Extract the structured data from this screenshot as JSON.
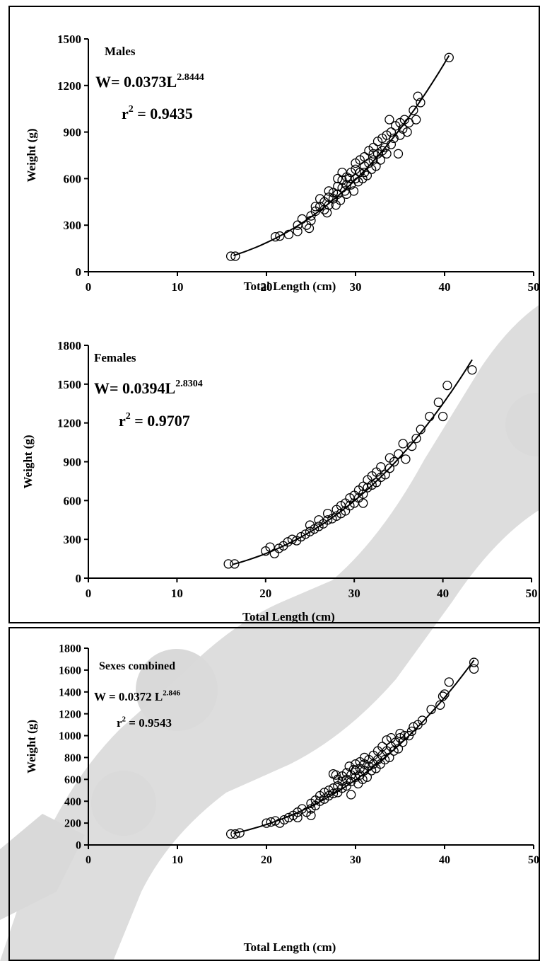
{
  "colors": {
    "ink": "#000000",
    "watermark": "#d9d9d9",
    "background": "#ffffff"
  },
  "chart_data": [
    {
      "type": "scatter",
      "title": "Males",
      "equation": {
        "prefix": "W= 0.0373L",
        "exponent": "2.8444"
      },
      "r2": {
        "prefix": "r",
        "sup": "2",
        "value": " = 0.9435"
      },
      "xlabel": "Total Length (cm)",
      "ylabel": "Weight (g)",
      "xlim": [
        0,
        50
      ],
      "ylim": [
        0,
        1500
      ],
      "xticks": [
        0,
        10,
        20,
        30,
        40,
        50
      ],
      "yticks": [
        0,
        300,
        600,
        900,
        1200,
        1500
      ],
      "fit": {
        "a": 0.0373,
        "b": 2.8444,
        "xrange": [
          16.3,
          40.5
        ]
      },
      "series": [
        {
          "marker": "open-circle",
          "points": [
            [
              16.0,
              100
            ],
            [
              16.5,
              100
            ],
            [
              21.0,
              225
            ],
            [
              21.5,
              230
            ],
            [
              22.5,
              240
            ],
            [
              23.5,
              260
            ],
            [
              23.5,
              300
            ],
            [
              24.0,
              340
            ],
            [
              24.5,
              300
            ],
            [
              24.8,
              280
            ],
            [
              25.0,
              330
            ],
            [
              25.0,
              360
            ],
            [
              25.5,
              390
            ],
            [
              25.5,
              420
            ],
            [
              26.0,
              420
            ],
            [
              26.0,
              470
            ],
            [
              26.5,
              400
            ],
            [
              26.5,
              450
            ],
            [
              26.8,
              380
            ],
            [
              27.0,
              430
            ],
            [
              27.0,
              480
            ],
            [
              27.0,
              520
            ],
            [
              27.5,
              470
            ],
            [
              27.5,
              510
            ],
            [
              27.8,
              430
            ],
            [
              28.0,
              500
            ],
            [
              28.0,
              550
            ],
            [
              28.0,
              600
            ],
            [
              28.3,
              460
            ],
            [
              28.5,
              540
            ],
            [
              28.5,
              590
            ],
            [
              28.5,
              640
            ],
            [
              28.8,
              520
            ],
            [
              29.0,
              560
            ],
            [
              29.0,
              610
            ],
            [
              29.0,
              500
            ],
            [
              29.3,
              600
            ],
            [
              29.5,
              560
            ],
            [
              29.5,
              640
            ],
            [
              29.8,
              520
            ],
            [
              30.0,
              600
            ],
            [
              30.0,
              660
            ],
            [
              30.0,
              700
            ],
            [
              30.3,
              580
            ],
            [
              30.5,
              640
            ],
            [
              30.5,
              720
            ],
            [
              30.8,
              600
            ],
            [
              31.0,
              680
            ],
            [
              31.0,
              740
            ],
            [
              31.0,
              640
            ],
            [
              31.3,
              620
            ],
            [
              31.5,
              700
            ],
            [
              31.5,
              780
            ],
            [
              31.8,
              660
            ],
            [
              32.0,
              720
            ],
            [
              32.0,
              800
            ],
            [
              32.0,
              760
            ],
            [
              32.3,
              680
            ],
            [
              32.5,
              760
            ],
            [
              32.5,
              840
            ],
            [
              32.8,
              720
            ],
            [
              33.0,
              780
            ],
            [
              33.0,
              860
            ],
            [
              33.3,
              800
            ],
            [
              33.5,
              760
            ],
            [
              33.5,
              880
            ],
            [
              33.8,
              980
            ],
            [
              34.0,
              820
            ],
            [
              34.0,
              900
            ],
            [
              34.3,
              860
            ],
            [
              34.5,
              940
            ],
            [
              34.8,
              760
            ],
            [
              35.0,
              960
            ],
            [
              35.0,
              880
            ],
            [
              35.3,
              920
            ],
            [
              35.5,
              980
            ],
            [
              35.8,
              900
            ],
            [
              36.0,
              960
            ],
            [
              36.5,
              1040
            ],
            [
              36.8,
              980
            ],
            [
              37.0,
              1130
            ],
            [
              37.3,
              1090
            ],
            [
              40.5,
              1380
            ]
          ]
        }
      ]
    },
    {
      "type": "scatter",
      "title": "Females",
      "equation": {
        "prefix": "W= 0.0394L",
        "exponent": "2.8304"
      },
      "r2": {
        "prefix": "r",
        "sup": "2",
        "value": " = 0.9707"
      },
      "xlabel": "Total Length (cm)",
      "ylabel": "Weight (g)",
      "xlim": [
        0,
        50
      ],
      "ylim": [
        0,
        1800
      ],
      "xticks": [
        0,
        10,
        20,
        30,
        40,
        50
      ],
      "yticks": [
        0,
        300,
        600,
        900,
        1200,
        1500,
        1800
      ],
      "fit": {
        "a": 0.0394,
        "b": 2.8304,
        "xrange": [
          16.3,
          43.3
        ]
      },
      "series": [
        {
          "marker": "open-circle",
          "points": [
            [
              15.8,
              110
            ],
            [
              16.5,
              110
            ],
            [
              20.0,
              210
            ],
            [
              20.5,
              240
            ],
            [
              21.0,
              190
            ],
            [
              21.5,
              230
            ],
            [
              22.0,
              250
            ],
            [
              22.5,
              280
            ],
            [
              23.0,
              300
            ],
            [
              23.5,
              290
            ],
            [
              24.0,
              320
            ],
            [
              24.5,
              340
            ],
            [
              25.0,
              360
            ],
            [
              25.0,
              410
            ],
            [
              25.5,
              380
            ],
            [
              26.0,
              400
            ],
            [
              26.0,
              450
            ],
            [
              26.5,
              420
            ],
            [
              27.0,
              450
            ],
            [
              27.0,
              500
            ],
            [
              27.5,
              460
            ],
            [
              28.0,
              480
            ],
            [
              28.0,
              530
            ],
            [
              28.5,
              500
            ],
            [
              28.5,
              560
            ],
            [
              29.0,
              520
            ],
            [
              29.0,
              580
            ],
            [
              29.5,
              560
            ],
            [
              29.5,
              620
            ],
            [
              30.0,
              580
            ],
            [
              30.0,
              640
            ],
            [
              30.5,
              620
            ],
            [
              30.5,
              680
            ],
            [
              31.0,
              650
            ],
            [
              31.0,
              710
            ],
            [
              31.0,
              580
            ],
            [
              31.5,
              700
            ],
            [
              31.5,
              760
            ],
            [
              32.0,
              720
            ],
            [
              32.0,
              790
            ],
            [
              32.5,
              740
            ],
            [
              32.5,
              820
            ],
            [
              33.0,
              780
            ],
            [
              33.0,
              860
            ],
            [
              33.5,
              800
            ],
            [
              34.0,
              850
            ],
            [
              34.0,
              930
            ],
            [
              34.5,
              900
            ],
            [
              35.0,
              960
            ],
            [
              35.5,
              1040
            ],
            [
              35.8,
              920
            ],
            [
              36.5,
              1020
            ],
            [
              37.0,
              1080
            ],
            [
              37.5,
              1150
            ],
            [
              38.5,
              1250
            ],
            [
              39.5,
              1360
            ],
            [
              40.0,
              1250
            ],
            [
              40.5,
              1490
            ],
            [
              43.3,
              1610
            ]
          ]
        }
      ]
    },
    {
      "type": "scatter",
      "title": "Sexes combined",
      "equation": {
        "prefix": "W = 0.0372 L",
        "exponent": "2.846"
      },
      "r2": {
        "prefix": "r",
        "sup": "2",
        "value": " = 0.9543"
      },
      "xlabel": "Total Length (cm)",
      "ylabel": "Weight (g)",
      "xlim": [
        0,
        50
      ],
      "ylim": [
        0,
        1800
      ],
      "xticks": [
        0,
        10,
        20,
        30,
        40,
        50
      ],
      "yticks": [
        0,
        200,
        400,
        600,
        800,
        1000,
        1200,
        1400,
        1600,
        1800
      ],
      "fit": {
        "a": 0.0372,
        "b": 2.846,
        "xrange": [
          16.3,
          43.3
        ]
      },
      "series": [
        {
          "marker": "open-circle",
          "points": [
            [
              16.0,
              100
            ],
            [
              16.5,
              100
            ],
            [
              17.0,
              110
            ],
            [
              20.0,
              200
            ],
            [
              20.5,
              210
            ],
            [
              21.0,
              220
            ],
            [
              21.5,
              200
            ],
            [
              22.0,
              230
            ],
            [
              22.5,
              250
            ],
            [
              23.0,
              270
            ],
            [
              23.5,
              300
            ],
            [
              23.5,
              250
            ],
            [
              24.0,
              330
            ],
            [
              24.5,
              300
            ],
            [
              25.0,
              330
            ],
            [
              25.0,
              380
            ],
            [
              25.0,
              270
            ],
            [
              25.5,
              360
            ],
            [
              25.5,
              410
            ],
            [
              26.0,
              400
            ],
            [
              26.0,
              450
            ],
            [
              26.5,
              420
            ],
            [
              26.5,
              480
            ],
            [
              27.0,
              450
            ],
            [
              27.0,
              500
            ],
            [
              27.5,
              470
            ],
            [
              27.5,
              520
            ],
            [
              27.5,
              650
            ],
            [
              27.8,
              640
            ],
            [
              28.0,
              480
            ],
            [
              28.0,
              540
            ],
            [
              28.0,
              600
            ],
            [
              28.5,
              520
            ],
            [
              28.5,
              580
            ],
            [
              28.5,
              630
            ],
            [
              29.0,
              540
            ],
            [
              29.0,
              600
            ],
            [
              29.0,
              660
            ],
            [
              29.3,
              720
            ],
            [
              29.5,
              580
            ],
            [
              29.5,
              640
            ],
            [
              29.5,
              460
            ],
            [
              29.8,
              690
            ],
            [
              30.0,
              620
            ],
            [
              30.0,
              680
            ],
            [
              30.0,
              740
            ],
            [
              30.3,
              560
            ],
            [
              30.5,
              640
            ],
            [
              30.5,
              700
            ],
            [
              30.5,
              760
            ],
            [
              30.8,
              600
            ],
            [
              31.0,
              680
            ],
            [
              31.0,
              740
            ],
            [
              31.0,
              800
            ],
            [
              31.3,
              620
            ],
            [
              31.5,
              720
            ],
            [
              31.5,
              780
            ],
            [
              31.8,
              680
            ],
            [
              32.0,
              740
            ],
            [
              32.0,
              820
            ],
            [
              32.3,
              700
            ],
            [
              32.5,
              780
            ],
            [
              32.5,
              860
            ],
            [
              32.8,
              740
            ],
            [
              33.0,
              820
            ],
            [
              33.0,
              900
            ],
            [
              33.3,
              780
            ],
            [
              33.5,
              860
            ],
            [
              33.5,
              960
            ],
            [
              33.8,
              800
            ],
            [
              34.0,
              900
            ],
            [
              34.0,
              980
            ],
            [
              34.3,
              860
            ],
            [
              34.5,
              940
            ],
            [
              34.8,
              880
            ],
            [
              35.0,
              980
            ],
            [
              35.0,
              1020
            ],
            [
              35.3,
              940
            ],
            [
              35.5,
              1000
            ],
            [
              36.0,
              1000
            ],
            [
              36.3,
              1040
            ],
            [
              36.5,
              1080
            ],
            [
              37.0,
              1100
            ],
            [
              37.5,
              1140
            ],
            [
              38.5,
              1240
            ],
            [
              39.5,
              1280
            ],
            [
              39.8,
              1360
            ],
            [
              40.0,
              1380
            ],
            [
              40.5,
              1490
            ],
            [
              43.3,
              1610
            ],
            [
              43.3,
              1670
            ]
          ]
        }
      ]
    }
  ]
}
